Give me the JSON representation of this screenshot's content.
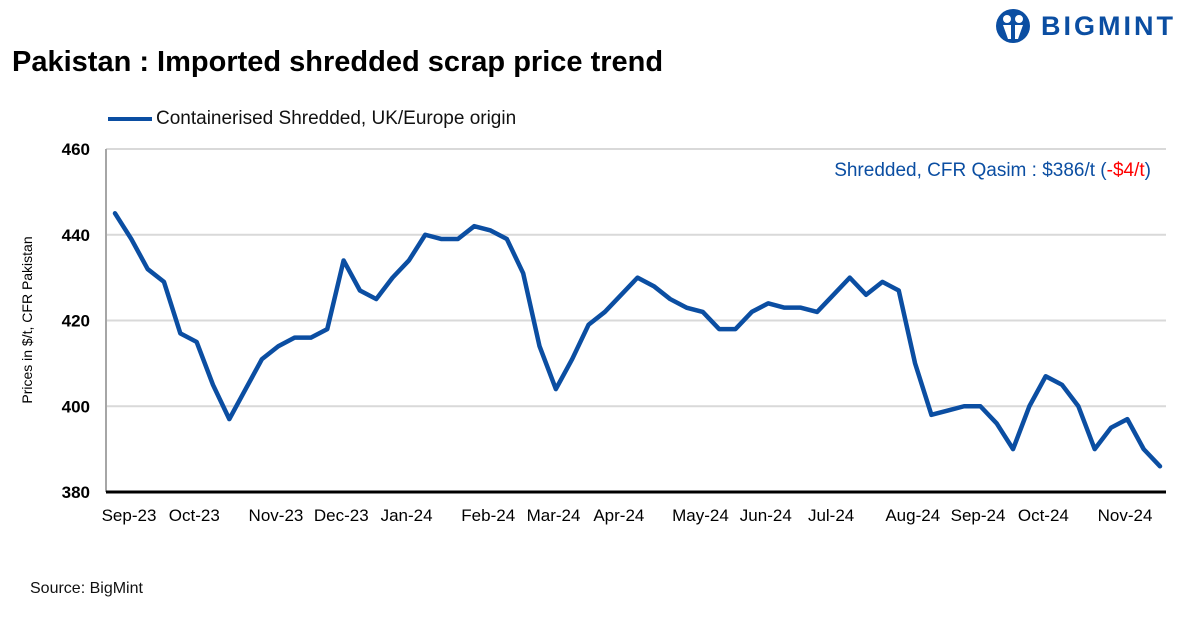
{
  "header": {
    "title": "Pakistan : Imported shredded scrap price trend",
    "logo_text": "BIGMINT"
  },
  "annotation": {
    "prefix": "Shredded, CFR Qasim : $386/t (",
    "change": "-$4/t",
    "suffix": ")"
  },
  "source": "Source: BigMint",
  "colors": {
    "line": "#0b4ea2",
    "negative": "#ff0000",
    "grid": "#d9d9d9"
  },
  "chart_data": {
    "type": "line",
    "title": "Pakistan : Imported shredded scrap price trend",
    "ylabel": "Prices in $/t, CFR Pakistan",
    "ylim": [
      380,
      460
    ],
    "yticks": [
      380,
      400,
      420,
      440,
      460
    ],
    "grid": true,
    "legend_placement": "top-left",
    "x_tick_labels": [
      {
        "label": "Sep-23",
        "index": 0
      },
      {
        "label": "Oct-23",
        "index": 4
      },
      {
        "label": "Nov-23",
        "index": 9
      },
      {
        "label": "Dec-23",
        "index": 13
      },
      {
        "label": "Jan-24",
        "index": 17
      },
      {
        "label": "Feb-24",
        "index": 22
      },
      {
        "label": "Mar-24",
        "index": 26
      },
      {
        "label": "Apr-24",
        "index": 30
      },
      {
        "label": "May-24",
        "index": 35
      },
      {
        "label": "Jun-24",
        "index": 39
      },
      {
        "label": "Jul-24",
        "index": 43
      },
      {
        "label": "Aug-24",
        "index": 48
      },
      {
        "label": "Sep-24",
        "index": 52
      },
      {
        "label": "Oct-24",
        "index": 56
      },
      {
        "label": "Nov-24",
        "index": 61
      }
    ],
    "series": [
      {
        "name": "Containerised Shredded, UK/Europe origin",
        "values": [
          445,
          439,
          432,
          429,
          417,
          415,
          405,
          397,
          404,
          411,
          414,
          416,
          416,
          418,
          434,
          427,
          425,
          430,
          434,
          440,
          439,
          439,
          442,
          441,
          439,
          431,
          414,
          404,
          411,
          419,
          422,
          426,
          430,
          428,
          425,
          423,
          422,
          418,
          418,
          422,
          424,
          423,
          423,
          422,
          426,
          430,
          426,
          429,
          427,
          410,
          398,
          399,
          400,
          400,
          396,
          390,
          400,
          407,
          405,
          400,
          390,
          395,
          397,
          390,
          386
        ]
      }
    ]
  }
}
